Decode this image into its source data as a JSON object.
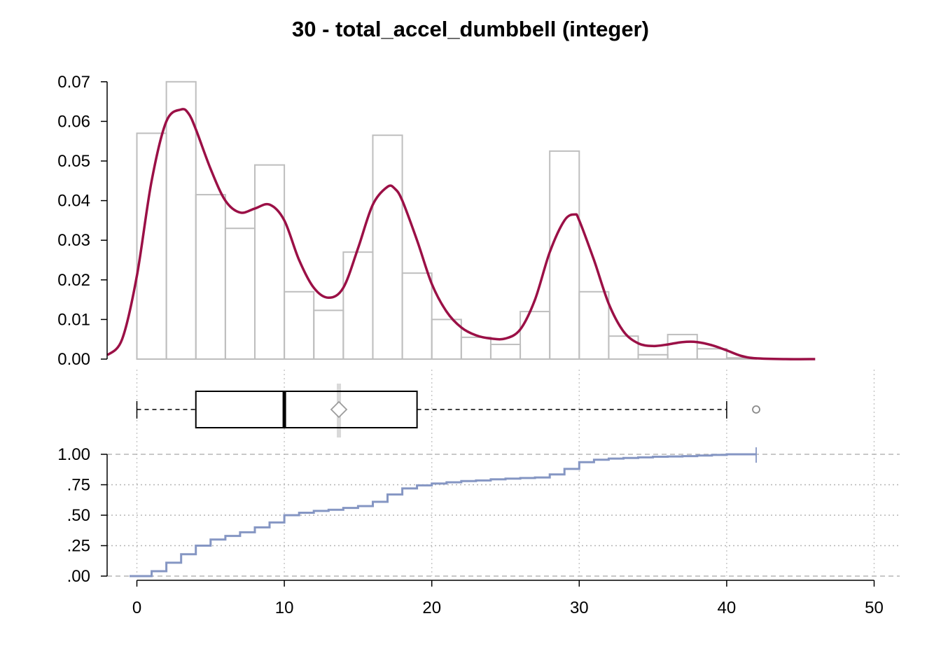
{
  "chart_data": {
    "title": "30 - total_accel_dumbbell (integer)",
    "histogram": {
      "type": "bar",
      "bin_width": 2,
      "bins": [
        {
          "x0": 0,
          "x1": 2,
          "density": 0.057
        },
        {
          "x0": 2,
          "x1": 4,
          "density": 0.07
        },
        {
          "x0": 4,
          "x1": 6,
          "density": 0.0415
        },
        {
          "x0": 6,
          "x1": 8,
          "density": 0.033
        },
        {
          "x0": 8,
          "x1": 10,
          "density": 0.049
        },
        {
          "x0": 10,
          "x1": 12,
          "density": 0.017
        },
        {
          "x0": 12,
          "x1": 14,
          "density": 0.0123
        },
        {
          "x0": 14,
          "x1": 16,
          "density": 0.027
        },
        {
          "x0": 16,
          "x1": 18,
          "density": 0.0565
        },
        {
          "x0": 18,
          "x1": 20,
          "density": 0.0217
        },
        {
          "x0": 20,
          "x1": 22,
          "density": 0.01
        },
        {
          "x0": 22,
          "x1": 24,
          "density": 0.0055
        },
        {
          "x0": 24,
          "x1": 26,
          "density": 0.0037
        },
        {
          "x0": 26,
          "x1": 28,
          "density": 0.012
        },
        {
          "x0": 28,
          "x1": 30,
          "density": 0.0525
        },
        {
          "x0": 30,
          "x1": 32,
          "density": 0.017
        },
        {
          "x0": 32,
          "x1": 34,
          "density": 0.0058
        },
        {
          "x0": 34,
          "x1": 36,
          "density": 0.0011
        },
        {
          "x0": 36,
          "x1": 38,
          "density": 0.0062
        },
        {
          "x0": 38,
          "x1": 40,
          "density": 0.0026
        },
        {
          "x0": 40,
          "x1": 42,
          "density": 0.0003
        }
      ],
      "ylim": [
        0,
        0.07
      ],
      "yticks": [
        "0.00",
        "0.01",
        "0.02",
        "0.03",
        "0.04",
        "0.05",
        "0.06",
        "0.07"
      ],
      "bar_stroke": "#bebebe"
    },
    "density": {
      "type": "line",
      "color": "#9b1046",
      "x": [
        -2,
        -1,
        0,
        1,
        2,
        3,
        3.5,
        4,
        5,
        6,
        7,
        8,
        9,
        10,
        11,
        12,
        13,
        14,
        15,
        16,
        17,
        17.5,
        18,
        19,
        20,
        21,
        22,
        23,
        24,
        25,
        26,
        27,
        28,
        29,
        29.7,
        30,
        31,
        32,
        33,
        34,
        35,
        36,
        37,
        38,
        39,
        40,
        41,
        42,
        44,
        46
      ],
      "y": [
        0.001,
        0.005,
        0.021,
        0.045,
        0.06,
        0.063,
        0.062,
        0.058,
        0.048,
        0.04,
        0.037,
        0.038,
        0.039,
        0.035,
        0.025,
        0.018,
        0.0155,
        0.018,
        0.028,
        0.039,
        0.0435,
        0.043,
        0.04,
        0.03,
        0.019,
        0.012,
        0.008,
        0.006,
        0.0052,
        0.0052,
        0.0075,
        0.015,
        0.027,
        0.035,
        0.0365,
        0.035,
        0.025,
        0.014,
        0.007,
        0.004,
        0.0033,
        0.0037,
        0.0043,
        0.0043,
        0.0035,
        0.0022,
        0.0008,
        0.0002,
        0.0,
        0.0
      ]
    },
    "boxplot": {
      "min": 0,
      "q1": 4,
      "median": 10,
      "mean": 13.7,
      "q3": 19,
      "whisker_max": 40,
      "outliers": [
        42
      ],
      "mean_marker_color": "#9c9c9c",
      "mean_band_color": "#d9d9d9"
    },
    "ecdf": {
      "type": "step",
      "color": "#8596c3",
      "x": [
        -0.5,
        1,
        2,
        3,
        4,
        5,
        6,
        7,
        8,
        9,
        10,
        11,
        12,
        13,
        14,
        15,
        16,
        17,
        18,
        19,
        20,
        21,
        22,
        23,
        24,
        25,
        26,
        27,
        28,
        29,
        30,
        31,
        32,
        33,
        34,
        35,
        36,
        37,
        38,
        39,
        40,
        41,
        42
      ],
      "y": [
        0.0,
        0.04,
        0.11,
        0.18,
        0.25,
        0.3,
        0.33,
        0.36,
        0.4,
        0.44,
        0.5,
        0.52,
        0.535,
        0.545,
        0.56,
        0.575,
        0.61,
        0.67,
        0.72,
        0.745,
        0.76,
        0.77,
        0.78,
        0.785,
        0.795,
        0.8,
        0.805,
        0.81,
        0.835,
        0.88,
        0.935,
        0.955,
        0.965,
        0.97,
        0.975,
        0.98,
        0.982,
        0.985,
        0.99,
        0.995,
        1.0,
        1.0,
        1.0
      ],
      "ylim": [
        0,
        1
      ],
      "yticks": [
        ".00",
        ".25",
        ".50",
        ".75",
        "1.00"
      ]
    },
    "x_axis": {
      "xlim": [
        -2,
        50
      ],
      "ticks": [
        0,
        10,
        20,
        30,
        40,
        50
      ],
      "tick_labels": [
        "0",
        "10",
        "20",
        "30",
        "40",
        "50"
      ]
    },
    "grid": true
  }
}
